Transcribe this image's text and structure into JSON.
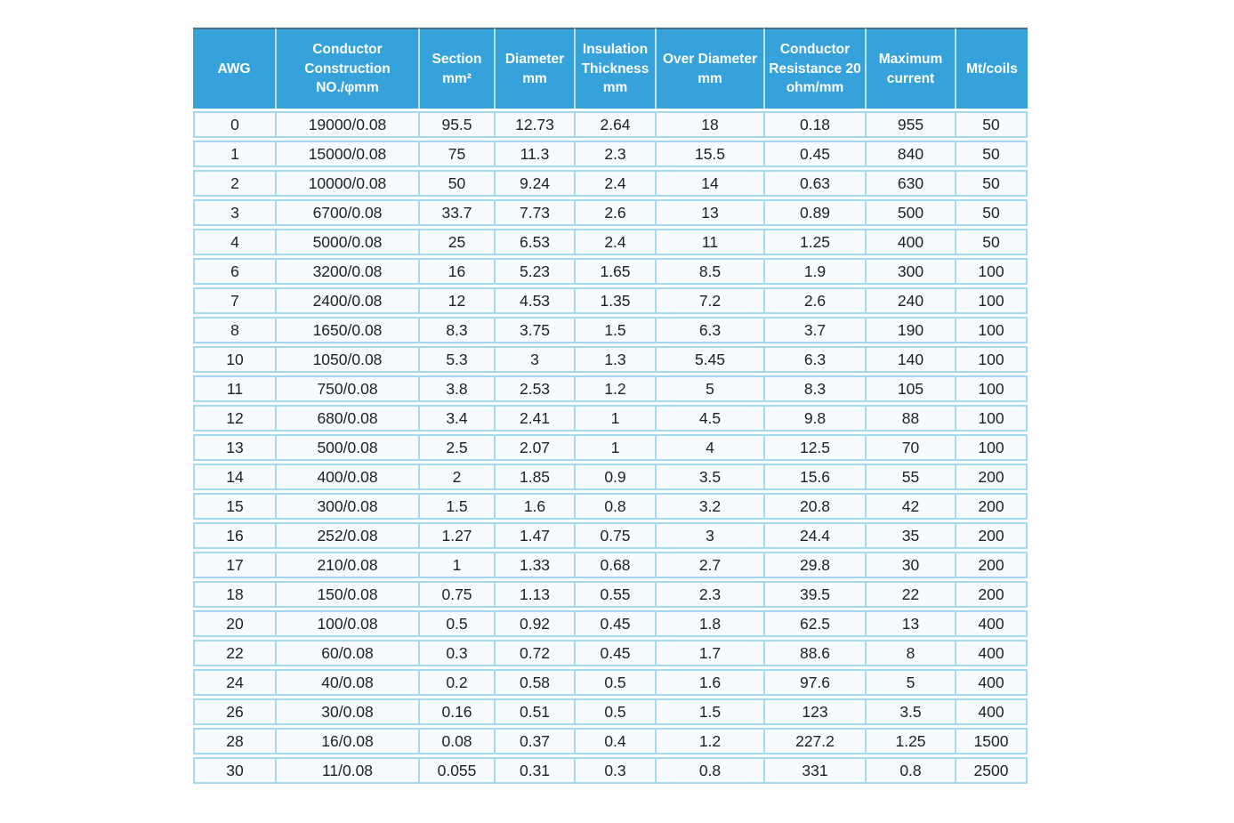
{
  "colors": {
    "header_bg": "#35a2dc",
    "header_text": "#ffffff",
    "header_top_line": "#47708d",
    "header_divider": "#b9e3f6",
    "grid_border": "#a5d8f1",
    "row_bg": "#f7fbfd",
    "cell_text": "#212121",
    "page_bg": "#ffffff"
  },
  "table": {
    "columns": [
      {
        "key": "awg",
        "label": "AWG"
      },
      {
        "key": "conductor-construction",
        "label": "Conductor\nConstruction\nNO./φmm"
      },
      {
        "key": "section",
        "label": "Section\nmm²"
      },
      {
        "key": "diameter",
        "label": "Diameter\nmm"
      },
      {
        "key": "insulation-thickness",
        "label": "Insulation\nThickness\nmm"
      },
      {
        "key": "over-diameter",
        "label": "Over Diameter\nmm"
      },
      {
        "key": "conductor-resistance",
        "label": "Conductor\nResistance 20\nohm/mm"
      },
      {
        "key": "maximum-current",
        "label": "Maximum\ncurrent"
      },
      {
        "key": "mt-coils",
        "label": "Mt/coils"
      }
    ]
  },
  "chart_data": {
    "type": "table",
    "columns": [
      "AWG",
      "Conductor Construction NO./φmm",
      "Section mm²",
      "Diameter mm",
      "Insulation Thickness mm",
      "Over Diameter mm",
      "Conductor Resistance 20 ohm/mm",
      "Maximum current",
      "Mt/coils"
    ],
    "rows": [
      [
        0,
        "19000/0.08",
        95.5,
        12.73,
        2.64,
        18,
        0.18,
        955,
        50
      ],
      [
        1,
        "15000/0.08",
        75,
        11.3,
        2.3,
        15.5,
        0.45,
        840,
        50
      ],
      [
        2,
        "10000/0.08",
        50,
        9.24,
        2.4,
        14,
        0.63,
        630,
        50
      ],
      [
        3,
        "6700/0.08",
        33.7,
        7.73,
        2.6,
        13,
        0.89,
        500,
        50
      ],
      [
        4,
        "5000/0.08",
        25,
        6.53,
        2.4,
        11,
        1.25,
        400,
        50
      ],
      [
        6,
        "3200/0.08",
        16,
        5.23,
        1.65,
        8.5,
        1.9,
        300,
        100
      ],
      [
        7,
        "2400/0.08",
        12,
        4.53,
        1.35,
        7.2,
        2.6,
        240,
        100
      ],
      [
        8,
        "1650/0.08",
        8.3,
        3.75,
        1.5,
        6.3,
        3.7,
        190,
        100
      ],
      [
        10,
        "1050/0.08",
        5.3,
        3,
        1.3,
        5.45,
        6.3,
        140,
        100
      ],
      [
        11,
        "750/0.08",
        3.8,
        2.53,
        1.2,
        5,
        8.3,
        105,
        100
      ],
      [
        12,
        "680/0.08",
        3.4,
        2.41,
        1,
        4.5,
        9.8,
        88,
        100
      ],
      [
        13,
        "500/0.08",
        2.5,
        2.07,
        1,
        4,
        12.5,
        70,
        100
      ],
      [
        14,
        "400/0.08",
        2,
        1.85,
        0.9,
        3.5,
        15.6,
        55,
        200
      ],
      [
        15,
        "300/0.08",
        1.5,
        1.6,
        0.8,
        3.2,
        20.8,
        42,
        200
      ],
      [
        16,
        "252/0.08",
        1.27,
        1.47,
        0.75,
        3,
        24.4,
        35,
        200
      ],
      [
        17,
        "210/0.08",
        1,
        1.33,
        0.68,
        2.7,
        29.8,
        30,
        200
      ],
      [
        18,
        "150/0.08",
        0.75,
        1.13,
        0.55,
        2.3,
        39.5,
        22,
        200
      ],
      [
        20,
        "100/0.08",
        0.5,
        0.92,
        0.45,
        1.8,
        62.5,
        13,
        400
      ],
      [
        22,
        "60/0.08",
        0.3,
        0.72,
        0.45,
        1.7,
        88.6,
        8,
        400
      ],
      [
        24,
        "40/0.08",
        0.2,
        0.58,
        0.5,
        1.6,
        97.6,
        5,
        400
      ],
      [
        26,
        "30/0.08",
        0.16,
        0.51,
        0.5,
        1.5,
        123,
        3.5,
        400
      ],
      [
        28,
        "16/0.08",
        0.08,
        0.37,
        0.4,
        1.2,
        227.2,
        1.25,
        1500
      ],
      [
        30,
        "11/0.08",
        0.055,
        0.31,
        0.3,
        0.8,
        331,
        0.8,
        2500
      ]
    ]
  }
}
